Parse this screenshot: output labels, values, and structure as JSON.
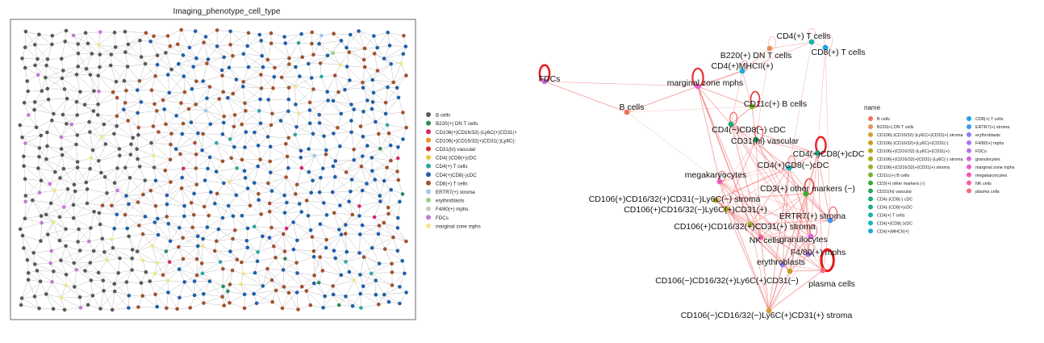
{
  "chart_data": [
    {
      "type": "scatter",
      "title": "Imaging_phenotype_cell_type",
      "xlabel": "",
      "ylabel": "",
      "grid": false,
      "legend_position": "right",
      "legend": [
        {
          "label": "B cells",
          "color": "#595959"
        },
        {
          "label": "B220(+) DN T cells",
          "color": "#2e8b57"
        },
        {
          "label": "CD106(+)CD16/32(-)Ly6C(+)CD31(+)",
          "color": "#d6246e"
        },
        {
          "label": "CD106(+)CD16/32(+)CD31(-)Ly6C(-) stroma",
          "color": "#f08a24"
        },
        {
          "label": "CD31(hi) vascular",
          "color": "#d62728"
        },
        {
          "label": "CD4(-)CD8(+)cDC",
          "color": "#e8c93c"
        },
        {
          "label": "CD4(+) T cells",
          "color": "#2ca9a0"
        },
        {
          "label": "CD4(+)CD8(-)cDC",
          "color": "#1f5fa8"
        },
        {
          "label": "CD8(+) T cells",
          "color": "#a0522d"
        },
        {
          "label": "ERTR7(+) stroma",
          "color": "#9ec8e8"
        },
        {
          "label": "erythroblasts",
          "color": "#98d088"
        },
        {
          "label": "F4/80(+) mphs",
          "color": "#c8c8c8"
        },
        {
          "label": "FDCs",
          "color": "#c678d8"
        },
        {
          "label": "marginal zone mphs",
          "color": "#f0e68c"
        }
      ],
      "node_color_share": {
        "B cells": 0.3,
        "CD4(+)CD8(-)cDC": 0.34,
        "CD8(+) T cells": 0.28,
        "FDCs": 0.03,
        "marginal zone mphs": 0.02,
        "other": 0.03
      }
    },
    {
      "type": "network",
      "legend_title": "name",
      "legend": [
        {
          "label": "B cells",
          "color": "#f07060"
        },
        {
          "label": "B220(+) DN T cells",
          "color": "#e8915a"
        },
        {
          "label": "CD106(-)CD16/32(-)Ly6C(+)CD31(+) stroma",
          "color": "#d4a035"
        },
        {
          "label": "CD106(-)CD16/32(+)Ly6C(+)CD31(-)",
          "color": "#c8a020"
        },
        {
          "label": "CD106(+)CD16/32(-)Ly6C(+)CD31(+)",
          "color": "#b8a820"
        },
        {
          "label": "CD106(+)CD16/32(+)CD31(-)Ly6C(-) stroma",
          "color": "#a8ac20"
        },
        {
          "label": "CD106(+)CD16/32(+)CD31(+) stroma",
          "color": "#9cb028"
        },
        {
          "label": "CD11c(+) B cells",
          "color": "#7cb32a"
        },
        {
          "label": "CD3(+) other markers (-)",
          "color": "#3cb02c"
        },
        {
          "label": "CD31(hi) vascular",
          "color": "#20a858"
        },
        {
          "label": "CD4(-)CD8(-) cDC",
          "color": "#1aae78"
        },
        {
          "label": "CD4(-)CD8(+)cDC",
          "color": "#18b090"
        },
        {
          "label": "CD4(+) T cells",
          "color": "#18b4a8"
        },
        {
          "label": "CD4(+)CD8(-)cDC",
          "color": "#10b8c0"
        },
        {
          "label": "CD4(+)MHCII(+)",
          "color": "#18b0d8"
        },
        {
          "label": "CD8(+) T cells",
          "color": "#18a4e8"
        },
        {
          "label": "ERTR7(+) stroma",
          "color": "#3c96f0"
        },
        {
          "label": "erythroblasts",
          "color": "#8c82f0"
        },
        {
          "label": "F4/80(+) mphs",
          "color": "#a478f0"
        },
        {
          "label": "FDCs",
          "color": "#c070e8"
        },
        {
          "label": "granulocytes",
          "color": "#d866e0"
        },
        {
          "label": "marginal zone mphs",
          "color": "#e85ad0"
        },
        {
          "label": "megakaryocytes",
          "color": "#f05ab8"
        },
        {
          "label": "NK cells",
          "color": "#f4609c"
        },
        {
          "label": "plasma cells",
          "color": "#f46a80"
        }
      ],
      "nodes": [
        {
          "label": "CD4(+) T cells",
          "color_key": "CD4(+) T cells"
        },
        {
          "label": "CD8(+) T cells",
          "color_key": "CD8(+) T cells"
        },
        {
          "label": "B220(+) DN T cells",
          "color_key": "B220(+) DN T cells"
        },
        {
          "label": "CD4(+)MHCII(+)",
          "color_key": "CD4(+)MHCII(+)"
        },
        {
          "label": "FDCs",
          "color_key": "FDCs"
        },
        {
          "label": "marginal zone mphs",
          "color_key": "marginal zone mphs"
        },
        {
          "label": "B cells",
          "color_key": "B cells"
        },
        {
          "label": "CD11c(+) B cells",
          "color_key": "CD11c(+) B cells"
        },
        {
          "label": "CD4(−)CD8(−) cDC",
          "color_key": "CD4(-)CD8(-) cDC"
        },
        {
          "label": "CD31(hi) vascular",
          "color_key": "CD31(hi) vascular"
        },
        {
          "label": "CD4(−)CD8(+)cDC",
          "color_key": "CD4(-)CD8(+)cDC"
        },
        {
          "label": "CD4(+)CD8(−)cDC",
          "color_key": "CD4(+)CD8(-)cDC"
        },
        {
          "label": "megakaryocytes",
          "color_key": "megakaryocytes"
        },
        {
          "label": "CD3(+) other markers (−)",
          "color_key": "CD3(+) other markers (-)"
        },
        {
          "label": "CD106(+)CD16/32(+)CD31(−)Ly6C(−) stroma",
          "color_key": "CD106(+)CD16/32(+)CD31(-)Ly6C(-) stroma"
        },
        {
          "label": "CD106(+)CD16/32(−)Ly6C(+)CD31(+)",
          "color_key": "CD106(+)CD16/32(-)Ly6C(+)CD31(+)"
        },
        {
          "label": "ERTR7(+) stroma",
          "color_key": "ERTR7(+) stroma"
        },
        {
          "label": "CD106(+)CD16/32(+)CD31(+) stroma",
          "color_key": "CD106(+)CD16/32(+)CD31(+) stroma"
        },
        {
          "label": "NK cells",
          "color_key": "NK cells"
        },
        {
          "label": "granulocytes",
          "color_key": "granulocytes"
        },
        {
          "label": "F4/80(+) mphs",
          "color_key": "F4/80(+) mphs"
        },
        {
          "label": "erythroblasts",
          "color_key": "erythroblasts"
        },
        {
          "label": "plasma cells",
          "color_key": "plasma cells"
        },
        {
          "label": "CD106(−)CD16/32(+)Ly6C(+)CD31(−)",
          "color_key": "CD106(-)CD16/32(+)Ly6C(+)CD31(-)"
        },
        {
          "label": "CD106(−)CD16/32(−)Ly6C(+)CD31(+) stroma",
          "color_key": "CD106(-)CD16/32(-)Ly6C(+)CD31(+) stroma"
        }
      ]
    }
  ]
}
